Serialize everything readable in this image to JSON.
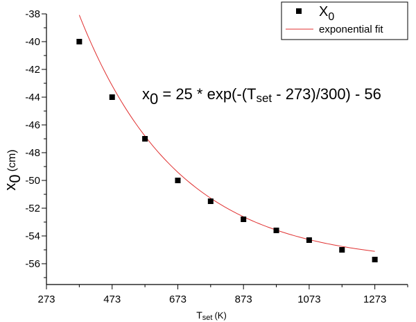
{
  "chart_data": {
    "type": "scatter",
    "xlabel": {
      "main": "T",
      "sub": "set",
      "unit": "(K)"
    },
    "ylabel": {
      "main": "x",
      "sub": "0",
      "unit": "(cm)"
    },
    "xlim": [
      273,
      1373
    ],
    "ylim": [
      -57.5,
      -38
    ],
    "x_ticks": [
      273,
      473,
      673,
      873,
      1073,
      1273
    ],
    "y_ticks": [
      -56,
      -54,
      -52,
      -50,
      -48,
      -46,
      -44,
      -42,
      -40,
      -38
    ],
    "grid": false,
    "legend_position": "top-right",
    "series": [
      {
        "name": "X0",
        "legend_main": "X",
        "legend_sub": "0",
        "kind": "scatter",
        "marker": "square",
        "color": "#000000",
        "x": [
          373,
          473,
          573,
          673,
          773,
          873,
          973,
          1073,
          1173,
          1273
        ],
        "y": [
          -40.0,
          -44.0,
          -47.0,
          -50.0,
          -51.5,
          -52.8,
          -53.6,
          -54.3,
          -55.0,
          -55.7
        ]
      },
      {
        "name": "exponential fit",
        "kind": "line",
        "color": "#e03030",
        "formula": {
          "amplitude": 25,
          "x0": 273,
          "tau": 300,
          "offset": -56
        },
        "x_range": [
          373,
          1273
        ]
      }
    ],
    "annotation": {
      "parts": [
        "x",
        "0",
        " = 25 * exp(-(T",
        "set",
        " - 273)/300) - 56"
      ]
    }
  }
}
